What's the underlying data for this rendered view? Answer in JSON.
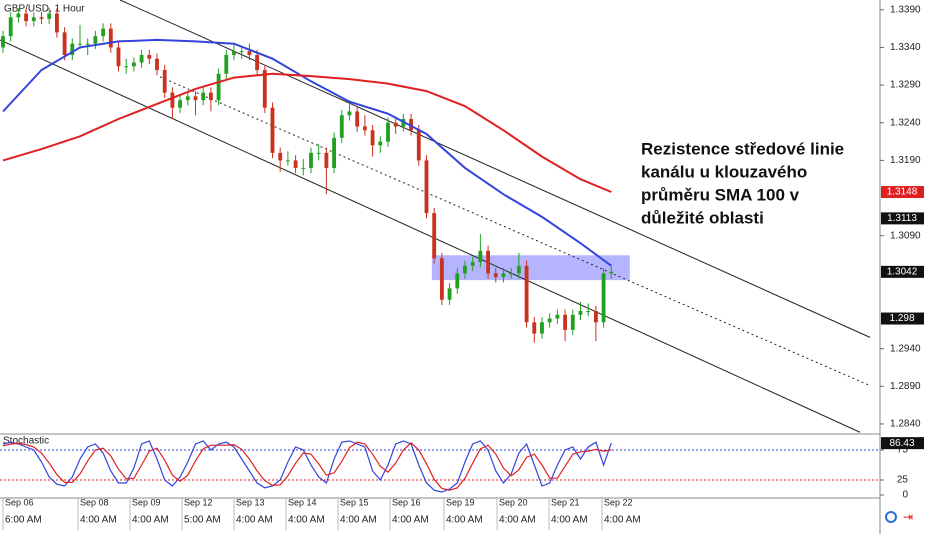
{
  "chart_data": {
    "type": "candlestick",
    "title": "GBP/USD, 1 Hour",
    "xlim": [
      -0.39,
      113.9
    ],
    "ylim": [
      1.2828,
      1.3403
    ],
    "yticks": [
      {
        "value": 1.339,
        "label": "1.3390"
      },
      {
        "value": 1.334,
        "label": "1.3340"
      },
      {
        "value": 1.329,
        "label": "1.3290"
      },
      {
        "value": 1.324,
        "label": "1.3240"
      },
      {
        "value": 1.319,
        "label": "1.3190"
      },
      {
        "value": 1.309,
        "label": "1.3090"
      },
      {
        "value": 1.294,
        "label": "1.2940"
      },
      {
        "value": 1.289,
        "label": "1.2890"
      },
      {
        "value": 1.284,
        "label": "1.2840"
      }
    ],
    "xticks": [
      {
        "value": 0,
        "label": "Sep 06",
        "sublabel": "6:00 AM"
      },
      {
        "value": 9.74,
        "label": "Sep 08",
        "sublabel": "4:00 AM"
      },
      {
        "value": 16.49,
        "label": "Sep 09",
        "sublabel": "4:00 AM"
      },
      {
        "value": 23.25,
        "label": "Sep 12",
        "sublabel": "5:00 AM"
      },
      {
        "value": 30,
        "label": "Sep 13",
        "sublabel": "4:00 AM"
      },
      {
        "value": 36.75,
        "label": "Sep 14",
        "sublabel": "4:00 AM"
      },
      {
        "value": 43.51,
        "label": "Sep 15",
        "sublabel": "4:00 AM"
      },
      {
        "value": 50.26,
        "label": "Sep 16",
        "sublabel": "4:00 AM"
      },
      {
        "value": 57.27,
        "label": "Sep 19",
        "sublabel": "4:00 AM"
      },
      {
        "value": 64.16,
        "label": "Sep 20",
        "sublabel": "4:00 AM"
      },
      {
        "value": 70.91,
        "label": "Sep 21",
        "sublabel": "4:00 AM"
      },
      {
        "value": 77.79,
        "label": "Sep 22",
        "sublabel": "4:00 AM"
      }
    ],
    "up_color": "#22a022",
    "down_color": "#c8321e",
    "candles": [
      [
        1.334,
        1.3362,
        1.3333,
        1.3355
      ],
      [
        1.3355,
        1.3387,
        1.3348,
        1.338
      ],
      [
        1.338,
        1.3392,
        1.3373,
        1.3385
      ],
      [
        1.3385,
        1.3392,
        1.3368,
        1.3375
      ],
      [
        1.3375,
        1.3387,
        1.3368,
        1.338
      ],
      [
        1.338,
        1.3387,
        1.3371,
        1.3378
      ],
      [
        1.3378,
        1.3392,
        1.3371,
        1.3385
      ],
      [
        1.3385,
        1.3392,
        1.3353,
        1.336
      ],
      [
        1.336,
        1.3367,
        1.3323,
        1.333
      ],
      [
        1.333,
        1.3352,
        1.3323,
        1.3345
      ],
      [
        1.3345,
        1.337,
        1.3338,
        1.3345
      ],
      [
        1.3345,
        1.3352,
        1.333,
        1.3345
      ],
      [
        1.3345,
        1.3362,
        1.3338,
        1.3355
      ],
      [
        1.3355,
        1.3372,
        1.3348,
        1.3365
      ],
      [
        1.3365,
        1.3372,
        1.3333,
        1.334
      ],
      [
        1.334,
        1.3347,
        1.3308,
        1.3315
      ],
      [
        1.3315,
        1.3325,
        1.3305,
        1.3315
      ],
      [
        1.3315,
        1.3327,
        1.3308,
        1.332
      ],
      [
        1.332,
        1.3337,
        1.3313,
        1.333
      ],
      [
        1.333,
        1.3337,
        1.3318,
        1.3325
      ],
      [
        1.3325,
        1.3332,
        1.3303,
        1.331
      ],
      [
        1.331,
        1.3317,
        1.3273,
        1.328
      ],
      [
        1.328,
        1.3287,
        1.3245,
        1.326
      ],
      [
        1.326,
        1.3277,
        1.3253,
        1.327
      ],
      [
        1.327,
        1.3282,
        1.3263,
        1.3275
      ],
      [
        1.3275,
        1.3282,
        1.325,
        1.327
      ],
      [
        1.327,
        1.3287,
        1.3263,
        1.328
      ],
      [
        1.328,
        1.3287,
        1.3255,
        1.327
      ],
      [
        1.327,
        1.3312,
        1.3263,
        1.3305
      ],
      [
        1.3305,
        1.3337,
        1.3298,
        1.333
      ],
      [
        1.333,
        1.3345,
        1.3323,
        1.3335
      ],
      [
        1.3335,
        1.3342,
        1.3325,
        1.3335
      ],
      [
        1.3335,
        1.3345,
        1.3323,
        1.333
      ],
      [
        1.333,
        1.3337,
        1.3303,
        1.331
      ],
      [
        1.331,
        1.3317,
        1.3253,
        1.326
      ],
      [
        1.326,
        1.3267,
        1.3193,
        1.32
      ],
      [
        1.32,
        1.3207,
        1.3175,
        1.319
      ],
      [
        1.319,
        1.3202,
        1.3183,
        1.319
      ],
      [
        1.319,
        1.3197,
        1.3173,
        1.318
      ],
      [
        1.318,
        1.3192,
        1.317,
        1.318
      ],
      [
        1.318,
        1.3207,
        1.3173,
        1.32
      ],
      [
        1.32,
        1.3212,
        1.319,
        1.32
      ],
      [
        1.32,
        1.3207,
        1.3145,
        1.318
      ],
      [
        1.318,
        1.3227,
        1.3173,
        1.322
      ],
      [
        1.322,
        1.3257,
        1.3213,
        1.325
      ],
      [
        1.325,
        1.327,
        1.3243,
        1.3255
      ],
      [
        1.3255,
        1.3262,
        1.3228,
        1.3235
      ],
      [
        1.3235,
        1.325,
        1.3223,
        1.323
      ],
      [
        1.323,
        1.3237,
        1.3195,
        1.321
      ],
      [
        1.321,
        1.3222,
        1.32,
        1.3215
      ],
      [
        1.3215,
        1.3247,
        1.3208,
        1.324
      ],
      [
        1.324,
        1.3247,
        1.3225,
        1.3235
      ],
      [
        1.3235,
        1.3252,
        1.3228,
        1.3245
      ],
      [
        1.3245,
        1.3252,
        1.3223,
        1.323
      ],
      [
        1.323,
        1.3237,
        1.3183,
        1.319
      ],
      [
        1.319,
        1.3197,
        1.3113,
        1.312
      ],
      [
        1.312,
        1.3127,
        1.3053,
        1.306
      ],
      [
        1.306,
        1.3067,
        1.2998,
        1.3005
      ],
      [
        1.3005,
        1.3027,
        1.2998,
        1.302
      ],
      [
        1.302,
        1.3047,
        1.3013,
        1.304
      ],
      [
        1.304,
        1.3057,
        1.3033,
        1.305
      ],
      [
        1.305,
        1.3062,
        1.3043,
        1.3055
      ],
      [
        1.3055,
        1.3092,
        1.3048,
        1.307
      ],
      [
        1.307,
        1.3077,
        1.3033,
        1.304
      ],
      [
        1.304,
        1.3047,
        1.3028,
        1.3035
      ],
      [
        1.3035,
        1.3047,
        1.3028,
        1.304
      ],
      [
        1.304,
        1.3047,
        1.3033,
        1.304
      ],
      [
        1.304,
        1.3067,
        1.3033,
        1.305
      ],
      [
        1.305,
        1.3057,
        1.2968,
        1.2975
      ],
      [
        1.2975,
        1.2982,
        1.2948,
        1.296
      ],
      [
        1.296,
        1.2982,
        1.2953,
        1.2975
      ],
      [
        1.2975,
        1.2987,
        1.2968,
        1.298
      ],
      [
        1.298,
        1.2992,
        1.2973,
        1.2985
      ],
      [
        1.2985,
        1.2992,
        1.295,
        1.2965
      ],
      [
        1.2965,
        1.2992,
        1.2958,
        1.2985
      ],
      [
        1.2985,
        1.3002,
        1.2978,
        1.299
      ],
      [
        1.299,
        1.3,
        1.2983,
        1.299
      ],
      [
        1.299,
        1.2997,
        1.295,
        1.2975
      ],
      [
        1.2975,
        1.3047,
        1.2968,
        1.304
      ],
      [
        1.304,
        1.3049,
        1.3033,
        1.3042
      ]
    ],
    "series": [
      {
        "color": "#3344dd",
        "x": [
          0,
          5,
          10,
          15,
          20,
          25,
          30,
          35,
          40,
          45,
          50,
          55,
          60,
          65,
          70,
          75,
          79
        ],
        "values": [
          1.3255,
          1.331,
          1.334,
          1.3348,
          1.335,
          1.3348,
          1.3345,
          1.3325,
          1.3295,
          1.3268,
          1.3252,
          1.3225,
          1.318,
          1.3145,
          1.3115,
          1.308,
          1.305
        ]
      },
      {
        "color": "#e02020",
        "x": [
          0,
          5,
          10,
          15,
          20,
          25,
          30,
          35,
          40,
          45,
          50,
          55,
          60,
          65,
          70,
          75,
          79
        ],
        "values": [
          1.319,
          1.3205,
          1.3222,
          1.3245,
          1.3265,
          1.3285,
          1.33,
          1.3305,
          1.3302,
          1.3298,
          1.3292,
          1.3282,
          1.3262,
          1.323,
          1.3195,
          1.3165,
          1.3148
        ]
      }
    ],
    "lines": [
      {
        "style": "solid",
        "x": [
          15.2,
          112.6
        ],
        "y": [
          1.3403,
          1.2955
        ]
      },
      {
        "style": "dotted",
        "x": [
          20.4,
          112.6
        ],
        "y": [
          1.3301,
          1.2891
        ]
      },
      {
        "style": "solid",
        "x": [
          -0.39,
          111.3
        ],
        "y": [
          1.335,
          1.2829
        ]
      }
    ],
    "zones": [
      {
        "color": "#8c8cff",
        "x": [
          55.7,
          81.4
        ],
        "y": [
          1.3031,
          1.3064
        ]
      }
    ],
    "annotation": [
      "Rezistence středové linie",
      "kanálu u klouzavého",
      "průměru SMA 100 v",
      "důležité oblasti"
    ],
    "price_labels": [
      {
        "value": 1.3148,
        "color": "#e02020"
      },
      {
        "value": 1.3113,
        "color": "#111111"
      },
      {
        "value": 1.3042,
        "color": "#111111"
      },
      {
        "value": 1.298,
        "color": "#111111"
      }
    ],
    "indicator": {
      "title": "Stochastic",
      "ylim": [
        0,
        100
      ],
      "yticks": [
        75,
        25,
        0
      ],
      "levels": [
        {
          "value": 75,
          "color": "#3344dd"
        },
        {
          "value": 25,
          "color": "#e02020"
        }
      ],
      "series": [
        {
          "color": "#3344dd",
          "values": [
            85,
            88,
            85,
            80,
            75,
            55,
            30,
            18,
            15,
            30,
            60,
            80,
            85,
            70,
            40,
            20,
            20,
            45,
            85,
            90,
            60,
            25,
            15,
            30,
            55,
            85,
            90,
            75,
            85,
            88,
            80,
            60,
            40,
            20,
            12,
            15,
            25,
            55,
            80,
            75,
            50,
            30,
            20,
            60,
            88,
            90,
            85,
            80,
            40,
            25,
            50,
            85,
            90,
            85,
            50,
            20,
            8,
            5,
            10,
            20,
            55,
            85,
            90,
            75,
            40,
            20,
            35,
            70,
            85,
            50,
            15,
            20,
            50,
            75,
            80,
            60,
            80,
            88,
            50,
            86.43
          ]
        },
        {
          "color": "#e02020",
          "values": [
            82,
            85,
            86,
            84,
            80,
            70,
            53,
            34,
            21,
            21,
            35,
            57,
            75,
            78,
            65,
            43,
            27,
            28,
            50,
            73,
            78,
            58,
            33,
            23,
            33,
            57,
            77,
            83,
            83,
            83,
            84,
            76,
            60,
            40,
            24,
            16,
            17,
            32,
            53,
            70,
            68,
            52,
            33,
            37,
            56,
            79,
            88,
            85,
            68,
            48,
            38,
            53,
            75,
            87,
            75,
            52,
            26,
            11,
            8,
            12,
            28,
            53,
            77,
            83,
            68,
            45,
            32,
            42,
            63,
            68,
            50,
            28,
            28,
            48,
            68,
            72,
            73,
            76,
            73,
            75
          ]
        }
      ]
    }
  }
}
